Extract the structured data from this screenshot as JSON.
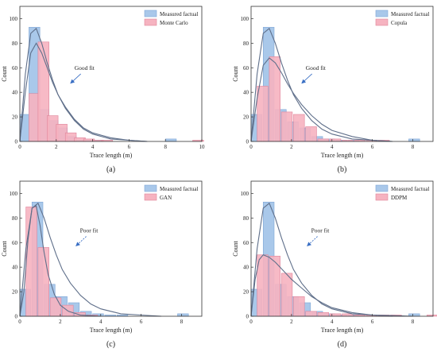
{
  "colors": {
    "measured": "#a9c8ea",
    "measured_edge": "#7fa6d6",
    "model": "#f6b3c0",
    "model_edge": "#e0849a",
    "curve": "#5f6f8a",
    "annotation": "#e06a6a",
    "arrow": "#3a6fc4"
  },
  "chart_data": [
    {
      "type": "bar",
      "panel_label": "(a)",
      "xlabel": "Trace length (m)",
      "ylabel": "Count",
      "xlim": [
        0,
        10
      ],
      "ylim": [
        0,
        110
      ],
      "xticks": [
        0,
        2,
        4,
        6,
        8,
        10
      ],
      "yticks": [
        0,
        20,
        40,
        60,
        80,
        100
      ],
      "legend_position": "top-right",
      "annotation": "Good fit",
      "series": [
        {
          "name": "Measured factual",
          "bin_left": [
            0,
            0.5,
            1,
            1.5,
            2,
            2.5,
            3,
            3.5,
            4,
            4.5,
            5,
            5.5,
            6,
            6.5,
            7,
            7.5,
            8,
            8.5,
            9,
            9.5
          ],
          "values": [
            22,
            93,
            26,
            17,
            11,
            4,
            1,
            1,
            1,
            0,
            0,
            0,
            0,
            0,
            0,
            0,
            2,
            0,
            0,
            0
          ]
        },
        {
          "name": "Monte Carlo",
          "bin_left": [
            0.5,
            1,
            1.5,
            2,
            2.5,
            3,
            3.5,
            4,
            4.5,
            5,
            5.5,
            6,
            6.5,
            7,
            7.5,
            8,
            8.5,
            9,
            9.5
          ],
          "values": [
            39,
            81,
            21,
            14,
            7,
            3,
            2,
            1,
            1,
            0,
            0,
            0,
            0,
            0,
            0,
            0,
            0,
            0,
            1
          ]
        }
      ],
      "curves": [
        {
          "x": [
            0,
            0.3,
            0.6,
            0.9,
            1.2,
            1.5,
            1.8,
            2.1,
            2.5,
            3,
            3.5,
            4,
            5,
            6,
            7
          ],
          "y": [
            0,
            55,
            88,
            92,
            80,
            64,
            50,
            38,
            27,
            17,
            10,
            6,
            2,
            1,
            0
          ]
        },
        {
          "x": [
            0,
            0.3,
            0.6,
            0.9,
            1.2,
            1.5,
            1.8,
            2.1,
            2.5,
            3,
            3.5,
            4,
            5,
            6,
            7
          ],
          "y": [
            0,
            40,
            72,
            80,
            72,
            60,
            48,
            38,
            28,
            18,
            11,
            7,
            3,
            1,
            0
          ]
        }
      ]
    },
    {
      "type": "bar",
      "panel_label": "(b)",
      "xlabel": "Trace length (m)",
      "ylabel": "Count",
      "xlim": [
        0,
        9
      ],
      "ylim": [
        0,
        110
      ],
      "xticks": [
        0,
        2,
        4,
        6,
        8
      ],
      "yticks": [
        0,
        20,
        40,
        60,
        80,
        100
      ],
      "legend_position": "top-right",
      "annotation": "Good fit",
      "series": [
        {
          "name": "Measured factual",
          "bin_left": [
            0,
            0.6,
            1.2,
            1.8,
            2.4,
            3.0,
            3.6,
            4.2,
            4.8,
            5.4,
            6.0,
            6.6,
            7.2,
            7.8,
            8.4
          ],
          "values": [
            22,
            93,
            26,
            16,
            11,
            4,
            2,
            1,
            1,
            0,
            0,
            0,
            0,
            2,
            0
          ]
        },
        {
          "name": "Copula",
          "bin_left": [
            0.3,
            0.9,
            1.5,
            2.1,
            2.7,
            3.3,
            3.9,
            4.5,
            5.1,
            5.7,
            6.3,
            6.9,
            7.5,
            8.1
          ],
          "values": [
            45,
            69,
            24,
            22,
            12,
            2,
            2,
            1,
            1,
            1,
            1,
            0,
            0,
            0
          ]
        }
      ],
      "curves": [
        {
          "x": [
            0,
            0.3,
            0.6,
            0.9,
            1.2,
            1.5,
            1.8,
            2.1,
            2.5,
            3,
            3.5,
            4,
            5,
            6,
            7
          ],
          "y": [
            0,
            55,
            88,
            92,
            80,
            64,
            50,
            38,
            27,
            17,
            10,
            6,
            2,
            1,
            0
          ]
        },
        {
          "x": [
            0,
            0.3,
            0.6,
            0.9,
            1.2,
            1.5,
            1.8,
            2.1,
            2.5,
            3,
            3.5,
            4,
            5,
            6,
            7
          ],
          "y": [
            0,
            35,
            62,
            68,
            64,
            56,
            47,
            39,
            30,
            21,
            14,
            9,
            4,
            1,
            0
          ]
        }
      ]
    },
    {
      "type": "bar",
      "panel_label": "(c)",
      "xlabel": "Trace length (m)",
      "ylabel": "Count",
      "xlim": [
        0,
        9
      ],
      "ylim": [
        0,
        110
      ],
      "xticks": [
        0,
        2,
        4,
        6,
        8
      ],
      "yticks": [
        0,
        20,
        40,
        60,
        80,
        100
      ],
      "legend_position": "top-right",
      "annotation": "Poor fit",
      "series": [
        {
          "name": "Measured factual",
          "bin_left": [
            0,
            0.6,
            1.2,
            1.8,
            2.4,
            3.0,
            3.6,
            4.2,
            4.8,
            5.4,
            6.0,
            6.6,
            7.2,
            7.8,
            8.4
          ],
          "values": [
            22,
            93,
            26,
            16,
            11,
            4,
            2,
            1,
            1,
            0,
            0,
            0,
            0,
            2,
            0
          ]
        },
        {
          "name": "GAN",
          "bin_left": [
            0.3,
            0.9,
            1.5,
            2.1,
            2.7,
            3.3
          ],
          "values": [
            89,
            56,
            15,
            9,
            3,
            1
          ]
        }
      ],
      "curves": [
        {
          "x": [
            0,
            0.3,
            0.6,
            0.9,
            1.2,
            1.5,
            1.8,
            2.1,
            2.5,
            3,
            3.5,
            4,
            5,
            6,
            7
          ],
          "y": [
            0,
            55,
            88,
            92,
            80,
            64,
            50,
            38,
            27,
            17,
            10,
            6,
            2,
            1,
            0
          ]
        },
        {
          "x": [
            0,
            0.2,
            0.4,
            0.6,
            0.8,
            1.0,
            1.2,
            1.4,
            1.7,
            2.0,
            2.4,
            3,
            4
          ],
          "y": [
            0,
            20,
            62,
            88,
            90,
            74,
            52,
            34,
            18,
            9,
            4,
            1,
            0
          ]
        }
      ]
    },
    {
      "type": "bar",
      "panel_label": "(d)",
      "xlabel": "Trace length (m)",
      "ylabel": "Count",
      "xlim": [
        0,
        9
      ],
      "ylim": [
        0,
        110
      ],
      "xticks": [
        0,
        2,
        4,
        6,
        8
      ],
      "yticks": [
        0,
        20,
        40,
        60,
        80,
        100
      ],
      "legend_position": "top-right",
      "annotation": "Poor fit",
      "series": [
        {
          "name": "Measured factual",
          "bin_left": [
            0,
            0.6,
            1.2,
            1.8,
            2.4,
            3.0,
            3.6,
            4.2,
            4.8,
            5.4,
            6.0,
            6.6,
            7.2,
            7.8,
            8.4
          ],
          "values": [
            22,
            93,
            26,
            16,
            11,
            4,
            2,
            1,
            1,
            0,
            0,
            0,
            0,
            2,
            0
          ]
        },
        {
          "name": "DDPM",
          "bin_left": [
            0.3,
            0.9,
            1.5,
            2.1,
            2.7,
            3.3,
            3.9,
            4.5,
            5.1,
            5.7,
            6.3,
            6.9,
            7.5,
            8.1,
            8.7
          ],
          "values": [
            50,
            49,
            35,
            16,
            4,
            3,
            2,
            2,
            1,
            1,
            1,
            1,
            0,
            0,
            1
          ]
        }
      ],
      "curves": [
        {
          "x": [
            0,
            0.3,
            0.6,
            0.9,
            1.2,
            1.5,
            1.8,
            2.1,
            2.5,
            3,
            3.5,
            4,
            5,
            6,
            7
          ],
          "y": [
            0,
            55,
            88,
            92,
            80,
            64,
            50,
            38,
            27,
            17,
            10,
            6,
            2,
            1,
            0
          ]
        },
        {
          "x": [
            0,
            0.2,
            0.4,
            0.6,
            0.9,
            1.2,
            1.6,
            2.0,
            2.5,
            3,
            3.5,
            4,
            5,
            6,
            7,
            8
          ],
          "y": [
            0,
            30,
            46,
            50,
            48,
            44,
            37,
            30,
            23,
            16,
            11,
            7,
            3,
            1,
            0.5,
            0
          ]
        }
      ]
    }
  ]
}
